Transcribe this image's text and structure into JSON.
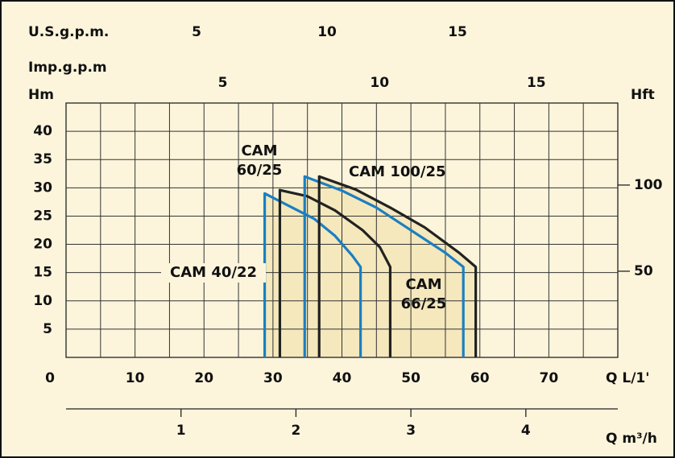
{
  "chart_data": {
    "type": "line",
    "categories_note_free": null,
    "xlabel": "Q L/1'",
    "xlim": [
      0,
      80
    ],
    "xticks": [
      0,
      10,
      20,
      30,
      40,
      50,
      60,
      70
    ],
    "xgrid": [
      5,
      10,
      15,
      20,
      25,
      30,
      35,
      40,
      45,
      50,
      55,
      60,
      65,
      70,
      75
    ],
    "ylabel": "Hm",
    "ylim": [
      0,
      45
    ],
    "yticks": [
      5,
      10,
      15,
      20,
      25,
      30,
      35,
      40
    ],
    "y2label": "Hft",
    "y2lim": [
      0,
      147.6
    ],
    "y2ticks": [
      50,
      100
    ],
    "top_axes": [
      {
        "label": "U.S.g.p.m.",
        "lim": [
          0,
          21.14
        ],
        "ticks": [
          5,
          10,
          15
        ]
      },
      {
        "label": "Imp.g.p.m",
        "lim": [
          0,
          17.6
        ],
        "ticks": [
          5,
          10,
          15
        ]
      }
    ],
    "bottom_axis": {
      "label": "Q m³/h",
      "lim": [
        0,
        4.8
      ],
      "ticks": [
        1,
        2,
        3,
        4
      ]
    },
    "grid": true,
    "series": [
      {
        "name": "CAM 40/22",
        "color": "#1b7fc2",
        "x": [
          28.8,
          28.8,
          32,
          36,
          39,
          41.5,
          42.7,
          42.7
        ],
        "values": [
          0,
          29,
          27,
          24.5,
          21.5,
          18,
          16,
          0
        ]
      },
      {
        "name": "CAM 60/25",
        "color": "#222222",
        "x": [
          31,
          31,
          35,
          39,
          43,
          45.5,
          47,
          47
        ],
        "values": [
          0,
          29.6,
          28.5,
          26,
          22.5,
          19.5,
          16,
          0
        ]
      },
      {
        "name": "CAM 66/25",
        "color": "#1b7fc2",
        "x": [
          34.6,
          34.6,
          40,
          45,
          50,
          55,
          57.6,
          57.6
        ],
        "values": [
          0,
          32,
          29.5,
          26.5,
          22.5,
          18.5,
          16,
          0
        ]
      },
      {
        "name": "CAM 100/25",
        "color": "#222222",
        "x": [
          36.7,
          36.7,
          42,
          47,
          52,
          57,
          59.4,
          59.4
        ],
        "values": [
          0,
          32,
          29.7,
          26.5,
          23,
          18.5,
          16,
          0
        ]
      }
    ]
  }
}
